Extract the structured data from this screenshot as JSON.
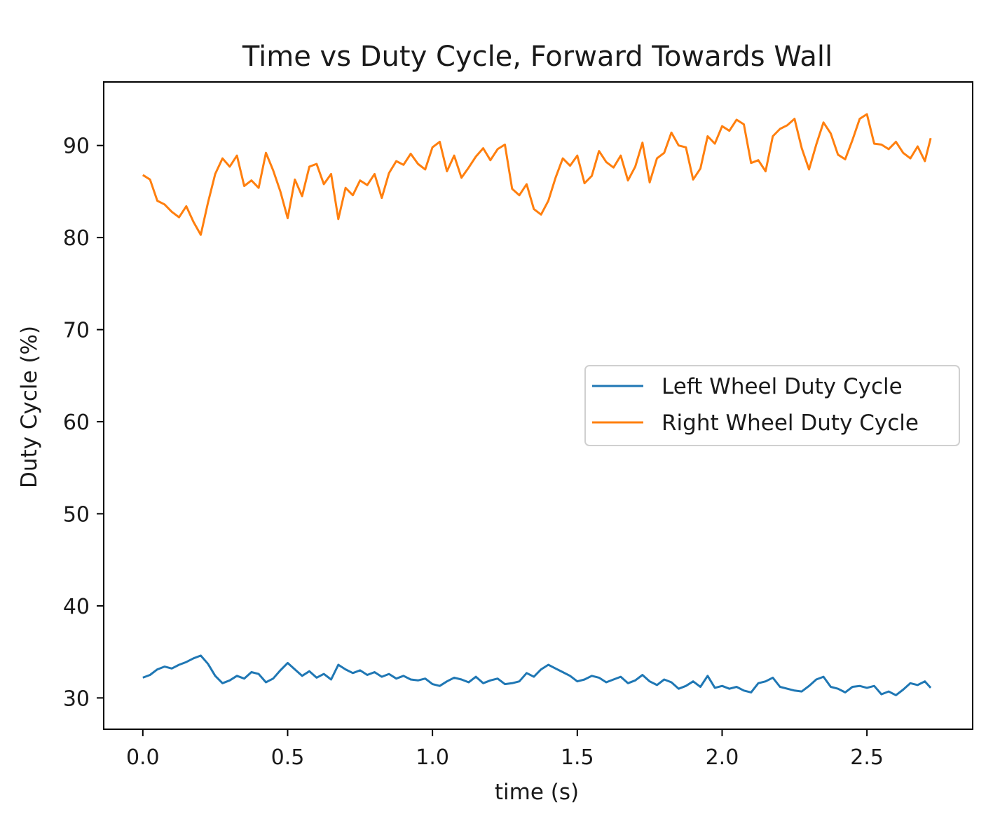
{
  "chart_data": {
    "type": "line",
    "title": "Time vs Duty Cycle, Forward Towards Wall",
    "xlabel": "time (s)",
    "ylabel": "Duty Cycle (%)",
    "xlim": [
      -0.135,
      2.865
    ],
    "ylim": [
      26.6,
      96.9
    ],
    "xticks": [
      0.0,
      0.5,
      1.0,
      1.5,
      2.0,
      2.5
    ],
    "xtick_labels": [
      "0.0",
      "0.5",
      "1.0",
      "1.5",
      "2.0",
      "2.5"
    ],
    "yticks": [
      30,
      40,
      50,
      60,
      70,
      80,
      90
    ],
    "ytick_labels": [
      "30",
      "40",
      "50",
      "60",
      "70",
      "80",
      "90"
    ],
    "grid": false,
    "legend_position": "center-right",
    "series": [
      {
        "name": "Left Wheel Duty Cycle",
        "color": "#1f77b4",
        "x": [
          0.0,
          0.025,
          0.05,
          0.075,
          0.1,
          0.125,
          0.15,
          0.175,
          0.2,
          0.225,
          0.25,
          0.275,
          0.3,
          0.325,
          0.35,
          0.375,
          0.4,
          0.425,
          0.45,
          0.475,
          0.5,
          0.525,
          0.55,
          0.575,
          0.6,
          0.625,
          0.65,
          0.675,
          0.7,
          0.725,
          0.75,
          0.775,
          0.8,
          0.825,
          0.85,
          0.875,
          0.9,
          0.925,
          0.95,
          0.975,
          1.0,
          1.025,
          1.05,
          1.075,
          1.1,
          1.125,
          1.15,
          1.175,
          1.2,
          1.225,
          1.25,
          1.275,
          1.3,
          1.325,
          1.35,
          1.375,
          1.4,
          1.425,
          1.45,
          1.475,
          1.5,
          1.525,
          1.55,
          1.575,
          1.6,
          1.625,
          1.65,
          1.675,
          1.7,
          1.725,
          1.75,
          1.775,
          1.8,
          1.825,
          1.85,
          1.875,
          1.9,
          1.925,
          1.95,
          1.975,
          2.0,
          2.025,
          2.05,
          2.075,
          2.1,
          2.125,
          2.15,
          2.175,
          2.2,
          2.225,
          2.25,
          2.275,
          2.3,
          2.325,
          2.35,
          2.375,
          2.4,
          2.425,
          2.45,
          2.475,
          2.5,
          2.525,
          2.55,
          2.575,
          2.6,
          2.625,
          2.65,
          2.675,
          2.7,
          2.72
        ],
        "y": [
          32.2,
          32.5,
          33.1,
          33.4,
          33.2,
          33.6,
          33.9,
          34.3,
          34.6,
          33.7,
          32.4,
          31.6,
          31.9,
          32.4,
          32.1,
          32.8,
          32.6,
          31.7,
          32.1,
          33.0,
          33.8,
          33.1,
          32.4,
          32.9,
          32.2,
          32.6,
          32.0,
          33.6,
          33.1,
          32.7,
          33.0,
          32.5,
          32.8,
          32.3,
          32.6,
          32.1,
          32.4,
          32.0,
          31.9,
          32.1,
          31.5,
          31.3,
          31.8,
          32.2,
          32.0,
          31.7,
          32.3,
          31.6,
          31.9,
          32.1,
          31.5,
          31.6,
          31.8,
          32.7,
          32.3,
          33.1,
          33.6,
          33.2,
          32.8,
          32.4,
          31.8,
          32.0,
          32.4,
          32.2,
          31.7,
          32.0,
          32.3,
          31.6,
          31.9,
          32.5,
          31.8,
          31.4,
          32.0,
          31.7,
          31.0,
          31.3,
          31.8,
          31.2,
          32.4,
          31.1,
          31.3,
          31.0,
          31.2,
          30.8,
          30.6,
          31.6,
          31.8,
          32.2,
          31.2,
          31.0,
          30.8,
          30.7,
          31.3,
          32.0,
          32.3,
          31.2,
          31.0,
          30.6,
          31.2,
          31.3,
          31.1,
          31.3,
          30.4,
          30.7,
          30.3,
          30.9,
          31.6,
          31.4,
          31.8,
          31.1
        ]
      },
      {
        "name": "Right Wheel Duty Cycle",
        "color": "#ff7f0e",
        "x": [
          0.0,
          0.025,
          0.05,
          0.075,
          0.1,
          0.125,
          0.15,
          0.175,
          0.2,
          0.225,
          0.25,
          0.275,
          0.3,
          0.325,
          0.35,
          0.375,
          0.4,
          0.425,
          0.45,
          0.475,
          0.5,
          0.525,
          0.55,
          0.575,
          0.6,
          0.625,
          0.65,
          0.675,
          0.7,
          0.725,
          0.75,
          0.775,
          0.8,
          0.825,
          0.85,
          0.875,
          0.9,
          0.925,
          0.95,
          0.975,
          1.0,
          1.025,
          1.05,
          1.075,
          1.1,
          1.125,
          1.15,
          1.175,
          1.2,
          1.225,
          1.25,
          1.275,
          1.3,
          1.325,
          1.35,
          1.375,
          1.4,
          1.425,
          1.45,
          1.475,
          1.5,
          1.525,
          1.55,
          1.575,
          1.6,
          1.625,
          1.65,
          1.675,
          1.7,
          1.725,
          1.75,
          1.775,
          1.8,
          1.825,
          1.85,
          1.875,
          1.9,
          1.925,
          1.95,
          1.975,
          2.0,
          2.025,
          2.05,
          2.075,
          2.1,
          2.125,
          2.15,
          2.175,
          2.2,
          2.225,
          2.25,
          2.275,
          2.3,
          2.325,
          2.35,
          2.375,
          2.4,
          2.425,
          2.45,
          2.475,
          2.5,
          2.525,
          2.55,
          2.575,
          2.6,
          2.625,
          2.65,
          2.675,
          2.7,
          2.72
        ],
        "y": [
          86.8,
          86.3,
          84.0,
          83.6,
          82.8,
          82.2,
          83.4,
          81.7,
          80.3,
          83.8,
          86.9,
          88.6,
          87.7,
          88.9,
          85.6,
          86.2,
          85.4,
          89.2,
          87.3,
          85.0,
          82.1,
          86.3,
          84.5,
          87.7,
          88.0,
          85.8,
          86.9,
          82.0,
          85.4,
          84.6,
          86.2,
          85.7,
          86.9,
          84.3,
          87.0,
          88.3,
          87.9,
          89.1,
          88.0,
          87.4,
          89.8,
          90.4,
          87.2,
          88.9,
          86.5,
          87.6,
          88.8,
          89.7,
          88.4,
          89.6,
          90.1,
          85.3,
          84.6,
          85.8,
          83.1,
          82.5,
          84.0,
          86.5,
          88.6,
          87.8,
          88.9,
          85.9,
          86.7,
          89.4,
          88.2,
          87.6,
          88.9,
          86.2,
          87.7,
          90.3,
          86.0,
          88.6,
          89.2,
          91.4,
          90.0,
          89.8,
          86.3,
          87.5,
          91.0,
          90.2,
          92.1,
          91.6,
          92.8,
          92.3,
          88.1,
          88.4,
          87.2,
          91.0,
          91.8,
          92.2,
          92.9,
          89.7,
          87.4,
          90.1,
          92.5,
          91.3,
          89.0,
          88.5,
          90.6,
          92.9,
          93.4,
          90.2,
          90.1,
          89.6,
          90.4,
          89.2,
          88.6,
          89.9,
          88.3,
          90.8
        ]
      }
    ]
  }
}
